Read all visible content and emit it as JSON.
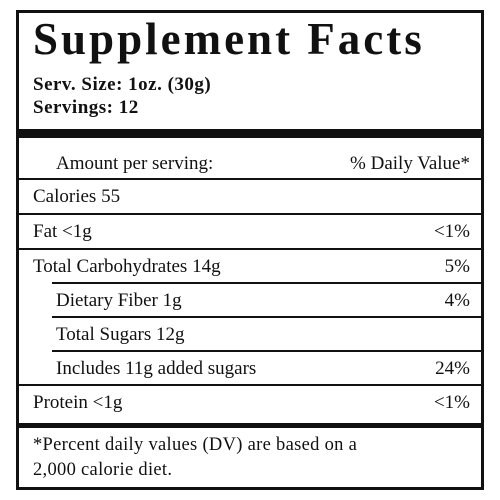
{
  "title": "Supplement Facts",
  "serving_size": "Serv. Size: 1oz. (30g)",
  "servings": "Servings: 12",
  "header": {
    "amount_label": "Amount per serving:",
    "dv_label": "% Daily Value*"
  },
  "rows": [
    {
      "name": "Calories 55",
      "dv": ""
    },
    {
      "name": "Fat <1g",
      "dv": "<1%"
    },
    {
      "name": "Total Carbohydrates 14g",
      "dv": "5%"
    },
    {
      "name": "Dietary Fiber 1g",
      "dv": "4%"
    },
    {
      "name": "Total Sugars 12g",
      "dv": ""
    },
    {
      "name": "Includes 11g added sugars",
      "dv": "24%"
    },
    {
      "name": "Protein <1g",
      "dv": "<1%"
    }
  ],
  "footnote_line1": "*Percent daily values (DV) are based on a",
  "footnote_line2": "2,000 calorie diet."
}
